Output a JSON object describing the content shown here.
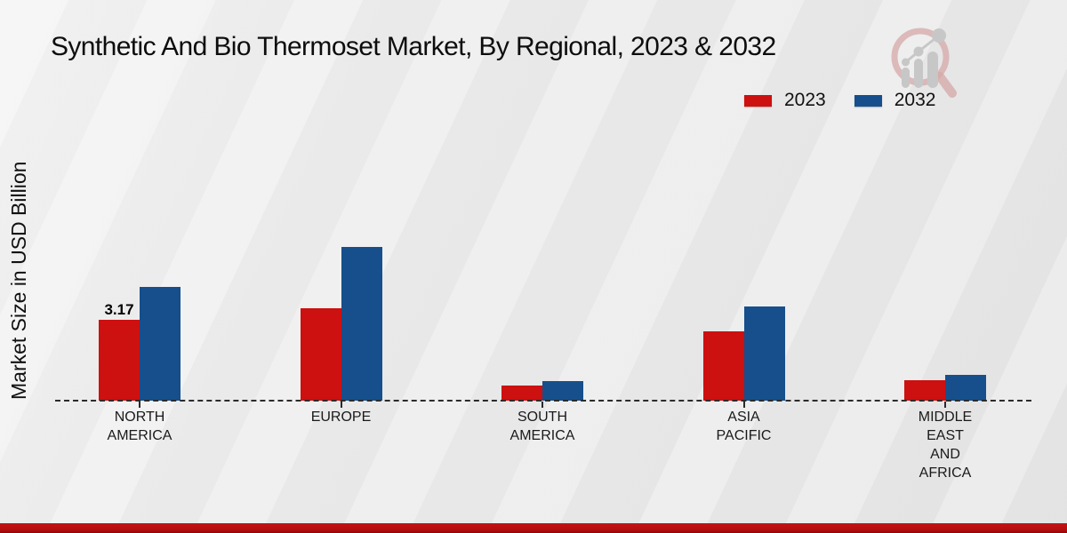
{
  "page": {
    "title": "Synthetic And Bio Thermoset Market, By Regional, 2023 & 2032"
  },
  "colors": {
    "series_2023": "#cd1010",
    "series_2032": "#164f8c",
    "footer_bar": "#b30e0e",
    "axis": "#2b2b2b"
  },
  "logo": {
    "name": "magnifier-bar-chart-logo"
  },
  "chart_data": {
    "type": "bar",
    "title": "Synthetic And Bio Thermoset Market, By Regional, 2023 & 2032",
    "xlabel": "",
    "ylabel": "Market Size in USD Billion",
    "categories": [
      "NORTH AMERICA",
      "EUROPE",
      "SOUTH AMERICA",
      "ASIA PACIFIC",
      "MIDDLE EAST AND AFRICA"
    ],
    "category_lines": [
      [
        "NORTH",
        "AMERICA"
      ],
      [
        "EUROPE"
      ],
      [
        "SOUTH",
        "AMERICA"
      ],
      [
        "ASIA",
        "PACIFIC"
      ],
      [
        "MIDDLE",
        "EAST",
        "AND",
        "AFRICA"
      ]
    ],
    "series": [
      {
        "name": "2023",
        "color": "#cd1010",
        "values": [
          3.17,
          3.62,
          0.59,
          2.72,
          0.8
        ]
      },
      {
        "name": "2032",
        "color": "#164f8c",
        "values": [
          4.46,
          6.02,
          0.77,
          3.69,
          1.01
        ]
      }
    ],
    "annotations": [
      {
        "series_index": 0,
        "category_index": 0,
        "text": "3.17"
      }
    ],
    "ylim": [
      0,
      7
    ],
    "grid": false,
    "baseline_style": "dashed",
    "legend_position": "top-right",
    "legend_entries": [
      "2023",
      "2032"
    ]
  }
}
